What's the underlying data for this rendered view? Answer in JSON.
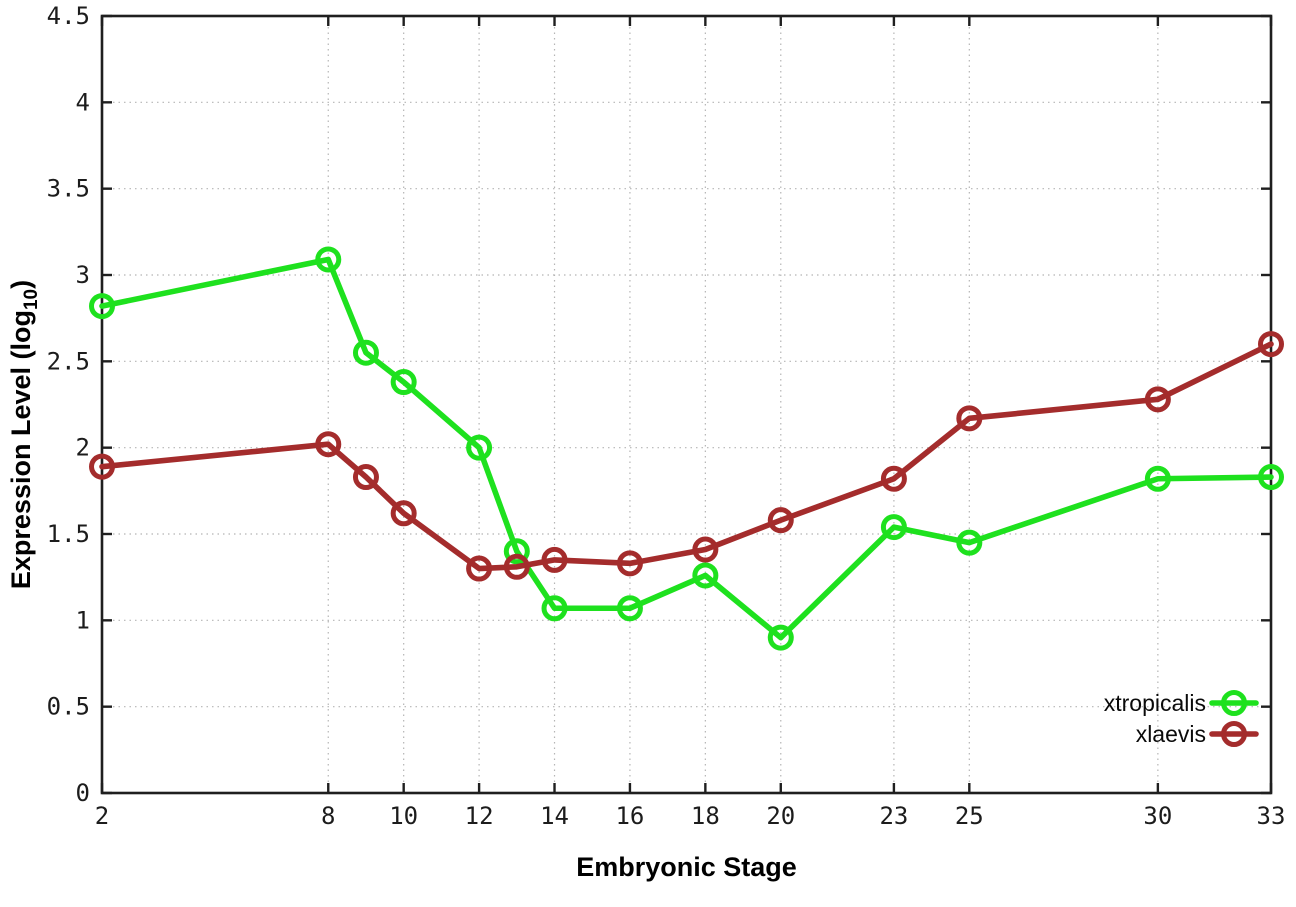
{
  "chart_data": {
    "type": "line",
    "title": "",
    "xlabel": "Embryonic Stage",
    "ylabel": "Expression Level (log10)",
    "ylabel_parts": {
      "main": "Expression Level (log",
      "sub": "10",
      "end": ")"
    },
    "x": [
      2,
      8,
      9,
      10,
      12,
      13,
      14,
      16,
      18,
      20,
      23,
      25,
      30,
      33
    ],
    "xlim": [
      2,
      33
    ],
    "ylim": [
      0,
      4.5
    ],
    "x_ticks": [
      2,
      8,
      10,
      12,
      14,
      16,
      18,
      20,
      23,
      25,
      30,
      33
    ],
    "x_tick_labels": [
      "2",
      "8",
      "10",
      "12",
      "14",
      "16",
      "18",
      "20",
      "23",
      "25",
      "30",
      "33"
    ],
    "y_ticks": [
      0,
      0.5,
      1,
      1.5,
      2,
      2.5,
      3,
      3.5,
      4,
      4.5
    ],
    "y_tick_labels": [
      "0",
      "0.5",
      "1",
      "1.5",
      "2",
      "2.5",
      "3",
      "3.5",
      "4",
      "4.5"
    ],
    "grid": true,
    "legend_position": "bottom-right",
    "series": [
      {
        "name": "xtropicalis",
        "color": "#1ee11e",
        "marker": "open-circle",
        "values": [
          2.82,
          3.09,
          2.55,
          2.38,
          2.0,
          1.4,
          1.07,
          1.07,
          1.26,
          0.9,
          1.54,
          1.45,
          1.82,
          1.83
        ]
      },
      {
        "name": "xlaevis",
        "color": "#a42c2c",
        "marker": "open-circle",
        "values": [
          1.89,
          2.02,
          1.83,
          1.62,
          1.3,
          1.31,
          1.35,
          1.33,
          1.41,
          1.58,
          1.82,
          2.17,
          2.28,
          2.6
        ]
      }
    ]
  },
  "colors": {
    "background": "#ffffff",
    "axis": "#1f1f1f",
    "grid": "#b5b5b5",
    "tick_text": "#1c1c1c"
  }
}
